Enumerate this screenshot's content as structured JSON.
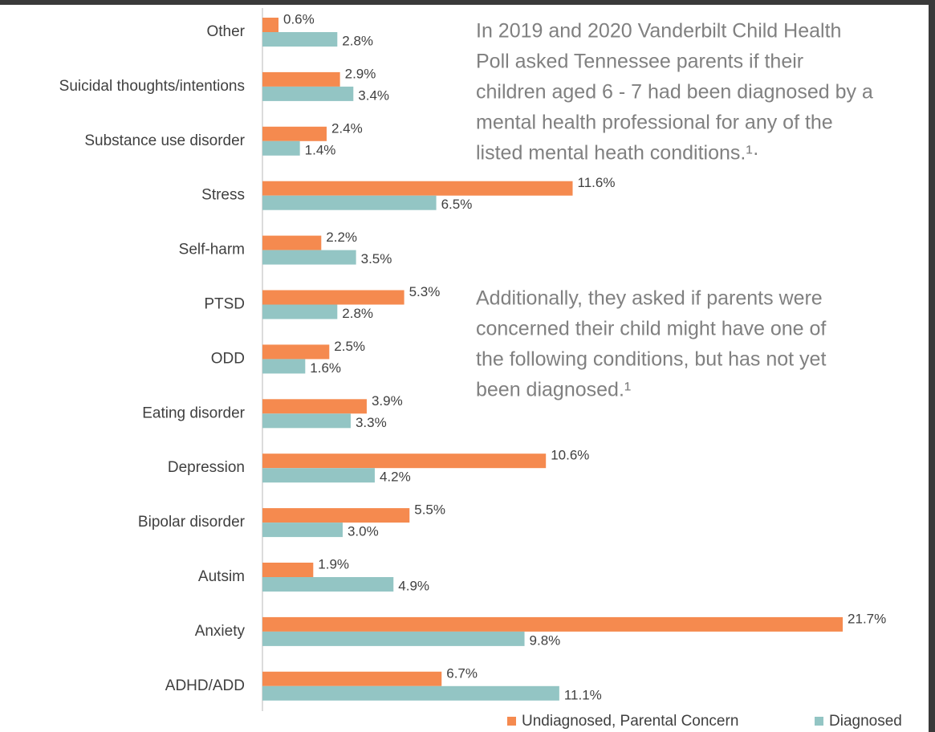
{
  "chart_data": {
    "type": "hbar",
    "categories": [
      "Other",
      "Suicidal thoughts/intentions",
      "Substance use disorder",
      "Stress",
      "Self-harm",
      "PTSD",
      "ODD",
      "Eating disorder",
      "Depression",
      "Bipolar disorder",
      "Autsim",
      "Anxiety",
      "ADHD/ADD"
    ],
    "series": [
      {
        "name": "Undiagnosed, Parental Concern",
        "color": "#f58a4f",
        "values": [
          0.6,
          2.9,
          2.4,
          11.6,
          2.2,
          5.3,
          2.5,
          3.9,
          10.6,
          5.5,
          1.9,
          21.7,
          6.7
        ],
        "value_labels": [
          "0.6%",
          "2.9%",
          "2.4%",
          "11.6%",
          "2.2%",
          "5.3%",
          "2.5%",
          "3.9%",
          "10.6%",
          "5.5%",
          "1.9%",
          "21.7%",
          "6.7%"
        ]
      },
      {
        "name": "Diagnosed",
        "color": "#93c5c4",
        "values": [
          2.8,
          3.4,
          1.4,
          6.5,
          3.5,
          2.8,
          1.6,
          3.3,
          4.2,
          3.0,
          4.9,
          9.8,
          11.1
        ],
        "value_labels": [
          "2.8%",
          "3.4%",
          "1.4%",
          "6.5%",
          "3.5%",
          "2.8%",
          "1.6%",
          "3.3%",
          "4.2%",
          "3.0%",
          "4.9%",
          "9.8%",
          "11.1%"
        ]
      }
    ],
    "xlim": [
      0,
      25
    ],
    "annotations": [
      {
        "lines": [
          "In 2019 and 2020 Vanderbilt Child Health",
          "Poll asked Tennessee parents if their",
          "children aged 6 - 7 had been diagnosed by a",
          "mental health professional for any of the",
          "listed mental heath conditions.¹·"
        ]
      },
      {
        "lines": [
          "Additionally, they asked if parents were",
          "concerned their child might have one of",
          "the following conditions, but has not yet",
          "been diagnosed.¹"
        ]
      }
    ],
    "legend": "bottom-right"
  }
}
